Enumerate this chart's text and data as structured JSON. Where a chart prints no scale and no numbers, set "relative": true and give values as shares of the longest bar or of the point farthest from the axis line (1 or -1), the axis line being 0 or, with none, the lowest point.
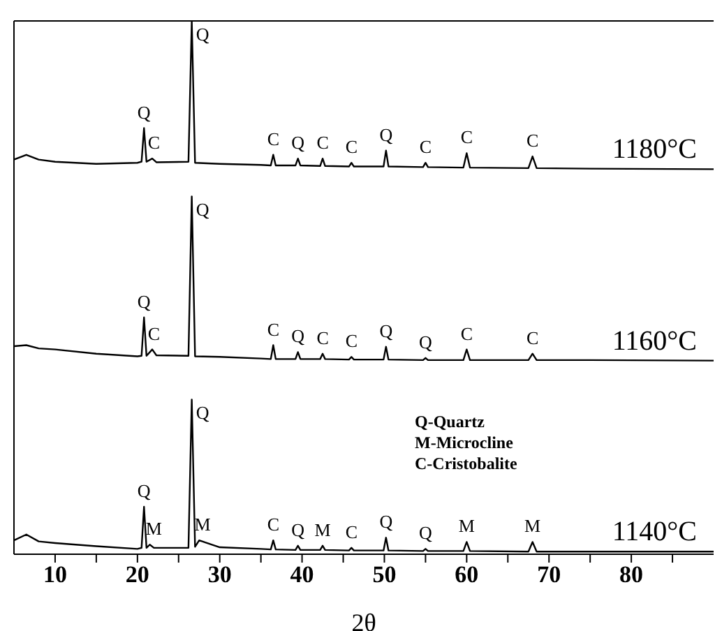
{
  "chart_data": {
    "type": "line",
    "relative": true,
    "xlabel": "2θ",
    "xlim": [
      5,
      90
    ],
    "xticks": [
      10,
      {
        "value": 15,
        "label": null
      },
      20,
      {
        "value": 25,
        "label": null
      },
      30,
      {
        "value": 35,
        "label": null
      },
      40,
      {
        "value": 45,
        "label": null
      },
      50,
      {
        "value": 55,
        "label": null
      },
      60,
      {
        "value": 65,
        "label": null
      },
      70,
      {
        "value": 75,
        "label": null
      },
      80,
      {
        "value": 85,
        "label": null
      }
    ],
    "grid": false,
    "legend": false,
    "marker": "none",
    "line_style": "solid",
    "series": [
      {
        "name": "1180°C",
        "color": "#000000",
        "x": [
          5,
          6.5,
          8,
          10,
          15,
          20,
          20.5,
          20.8,
          21.1,
          21.8,
          22.3,
          26.2,
          26.6,
          27,
          30,
          35,
          36.2,
          36.5,
          36.8,
          39.2,
          39.5,
          39.8,
          42.2,
          42.5,
          42.8,
          45.7,
          46,
          46.3,
          49.9,
          50.2,
          50.5,
          54.7,
          55,
          55.3,
          59.6,
          60,
          60.4,
          67.5,
          68,
          68.5,
          75,
          90
        ],
        "values": [
          0.74,
          0.749,
          0.74,
          0.736,
          0.732,
          0.734,
          0.736,
          0.799,
          0.736,
          0.742,
          0.735,
          0.736,
          1,
          0.734,
          0.732,
          0.73,
          0.729,
          0.749,
          0.729,
          0.729,
          0.742,
          0.729,
          0.728,
          0.742,
          0.728,
          0.727,
          0.734,
          0.727,
          0.727,
          0.757,
          0.727,
          0.726,
          0.734,
          0.726,
          0.725,
          0.752,
          0.725,
          0.724,
          0.746,
          0.724,
          0.723,
          0.722
        ]
      },
      {
        "name": "1160°C",
        "color": "#000000",
        "x": [
          5,
          6.5,
          8,
          10,
          15,
          20,
          20.5,
          20.8,
          21.1,
          21.8,
          22.3,
          26.2,
          26.6,
          27,
          30,
          35,
          36.2,
          36.5,
          36.8,
          39.2,
          39.5,
          39.8,
          42.2,
          42.5,
          42.8,
          45.7,
          46,
          46.3,
          49.9,
          50.2,
          50.5,
          54.7,
          55,
          55.3,
          59.6,
          60,
          60.4,
          67.5,
          68,
          68.5,
          75,
          90
        ],
        "values": [
          0.39,
          0.392,
          0.386,
          0.384,
          0.376,
          0.371,
          0.372,
          0.444,
          0.372,
          0.384,
          0.373,
          0.372,
          0.671,
          0.371,
          0.37,
          0.367,
          0.366,
          0.392,
          0.366,
          0.366,
          0.379,
          0.366,
          0.366,
          0.376,
          0.366,
          0.365,
          0.37,
          0.365,
          0.365,
          0.389,
          0.365,
          0.364,
          0.368,
          0.364,
          0.364,
          0.384,
          0.364,
          0.364,
          0.376,
          0.364,
          0.364,
          0.363
        ]
      },
      {
        "name": "1140°C",
        "color": "#000000",
        "x": [
          5,
          6.5,
          8,
          10,
          15,
          20,
          20.5,
          20.8,
          21.1,
          21.5,
          22,
          26.2,
          26.6,
          27,
          27.5,
          30,
          35,
          36.2,
          36.5,
          36.8,
          39.2,
          39.5,
          39.8,
          42.2,
          42.5,
          42.8,
          45.7,
          46,
          46.3,
          49.9,
          50.2,
          50.5,
          54.7,
          55,
          55.3,
          59.6,
          60,
          60.4,
          67.5,
          68,
          68.5,
          75,
          90
        ],
        "values": [
          0.026,
          0.037,
          0.024,
          0.021,
          0.015,
          0.01,
          0.012,
          0.089,
          0.012,
          0.018,
          0.012,
          0.012,
          0.29,
          0.014,
          0.026,
          0.013,
          0.01,
          0.009,
          0.026,
          0.009,
          0.008,
          0.016,
          0.008,
          0.008,
          0.016,
          0.008,
          0.007,
          0.012,
          0.007,
          0.007,
          0.031,
          0.007,
          0.006,
          0.01,
          0.006,
          0.006,
          0.023,
          0.006,
          0.005,
          0.023,
          0.005,
          0.005,
          0.005
        ]
      }
    ],
    "annotations": [
      {
        "text": "Q",
        "x": 20.8,
        "y": 0.799
      },
      {
        "text": "C",
        "x": 22,
        "y": 0.742
      },
      {
        "text": "Q",
        "x": 26.6,
        "y": 1
      },
      {
        "text": "C",
        "x": 36.5,
        "y": 0.749
      },
      {
        "text": "Q",
        "x": 39.5,
        "y": 0.742
      },
      {
        "text": "C",
        "x": 42.5,
        "y": 0.742
      },
      {
        "text": "C",
        "x": 46,
        "y": 0.734
      },
      {
        "text": "Q",
        "x": 50.2,
        "y": 0.757
      },
      {
        "text": "C",
        "x": 55,
        "y": 0.734
      },
      {
        "text": "C",
        "x": 60,
        "y": 0.752
      },
      {
        "text": "C",
        "x": 68,
        "y": 0.746
      },
      {
        "text": "Q",
        "x": 20.8,
        "y": 0.444
      },
      {
        "text": "C",
        "x": 22,
        "y": 0.384
      },
      {
        "text": "Q",
        "x": 26.6,
        "y": 0.671
      },
      {
        "text": "C",
        "x": 36.5,
        "y": 0.392
      },
      {
        "text": "Q",
        "x": 39.5,
        "y": 0.379
      },
      {
        "text": "C",
        "x": 42.5,
        "y": 0.376
      },
      {
        "text": "C",
        "x": 46,
        "y": 0.37
      },
      {
        "text": "Q",
        "x": 50.2,
        "y": 0.389
      },
      {
        "text": "Q",
        "x": 55,
        "y": 0.368
      },
      {
        "text": "C",
        "x": 60,
        "y": 0.384
      },
      {
        "text": "C",
        "x": 68,
        "y": 0.376
      },
      {
        "text": "Q",
        "x": 20.8,
        "y": 0.089
      },
      {
        "text": "M",
        "x": 22,
        "y": 0.018
      },
      {
        "text": "Q",
        "x": 26.6,
        "y": 0.29
      },
      {
        "text": "M",
        "x": 27.9,
        "y": 0.026
      },
      {
        "text": "C",
        "x": 36.5,
        "y": 0.026
      },
      {
        "text": "Q",
        "x": 39.5,
        "y": 0.016
      },
      {
        "text": "M",
        "x": 42.5,
        "y": 0.016
      },
      {
        "text": "C",
        "x": 46,
        "y": 0.012
      },
      {
        "text": "Q",
        "x": 50.2,
        "y": 0.031
      },
      {
        "text": "Q",
        "x": 55,
        "y": 0.01
      },
      {
        "text": "M",
        "x": 60,
        "y": 0.023
      },
      {
        "text": "M",
        "x": 68,
        "y": 0.023
      },
      "Q-Quartz",
      "M-Microcline",
      "C-Cristobalite"
    ]
  }
}
